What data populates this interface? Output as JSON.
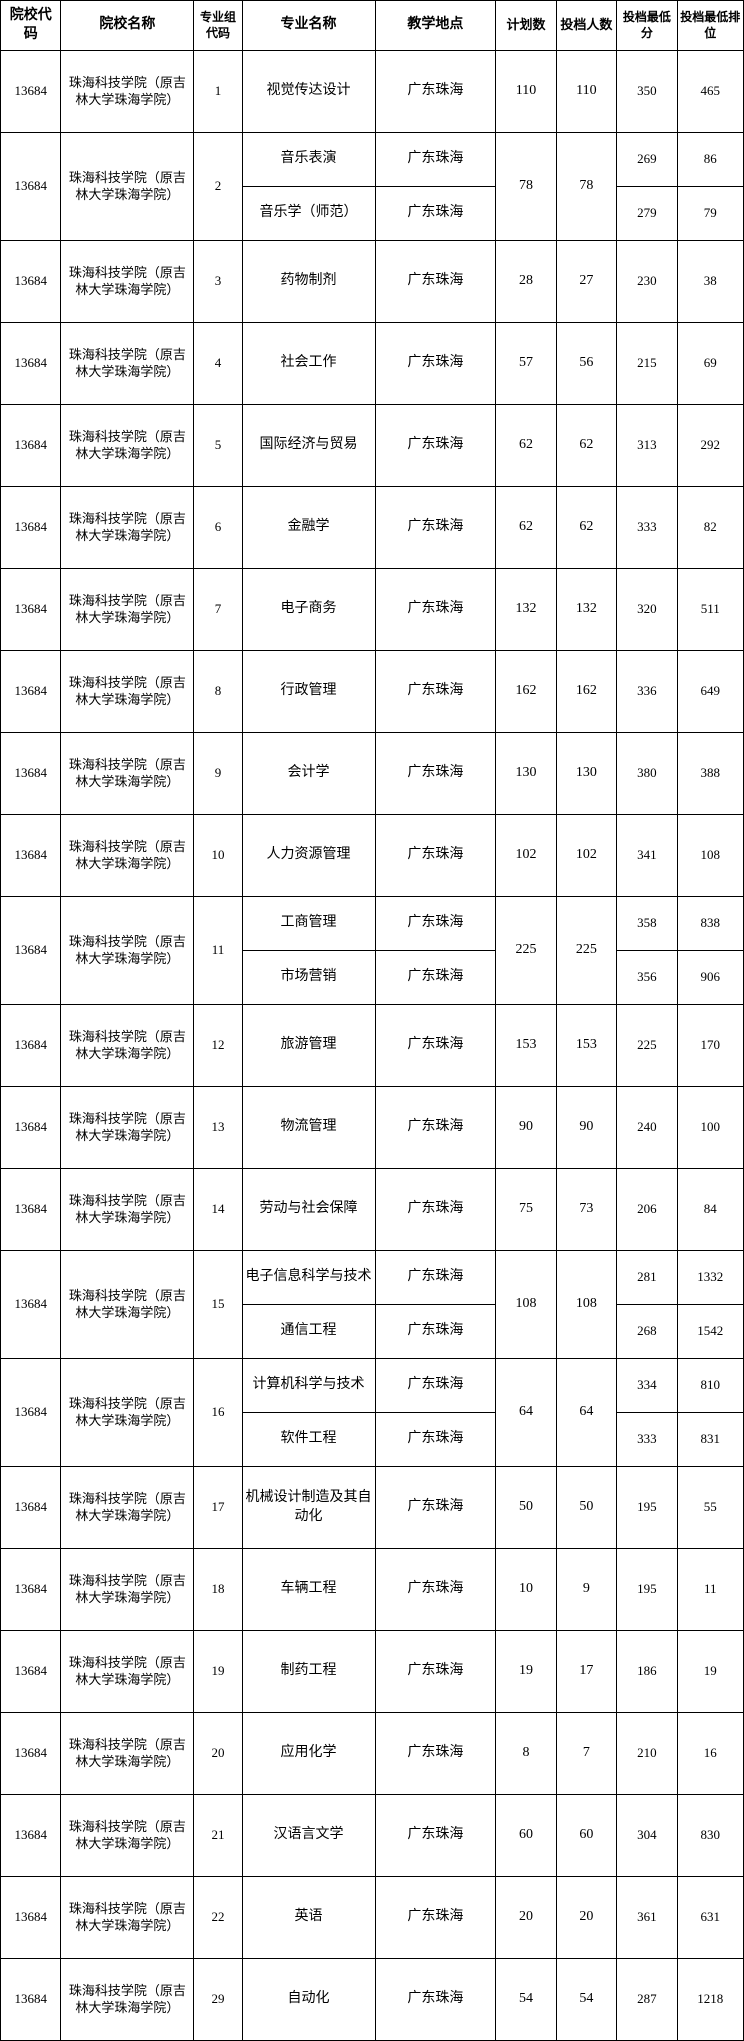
{
  "columns": [
    "院校代码",
    "院校名称",
    "专业组代码",
    "专业名称",
    "教学地点",
    "计划数",
    "投档人数",
    "投档最低分",
    "投档最低排位"
  ],
  "school_code": "13684",
  "school_name": "珠海科技学院（原吉林大学珠海学院）",
  "location": "广东珠海",
  "rows": [
    {
      "group": "1",
      "majors": [
        {
          "name": "视觉传达设计",
          "score": "350",
          "rank": "465"
        }
      ],
      "plan": "110",
      "admit": "110"
    },
    {
      "group": "2",
      "majors": [
        {
          "name": "音乐表演",
          "score": "269",
          "rank": "86"
        },
        {
          "name": "音乐学（师范）",
          "score": "279",
          "rank": "79"
        }
      ],
      "plan": "78",
      "admit": "78"
    },
    {
      "group": "3",
      "majors": [
        {
          "name": "药物制剂",
          "score": "230",
          "rank": "38"
        }
      ],
      "plan": "28",
      "admit": "27"
    },
    {
      "group": "4",
      "majors": [
        {
          "name": "社会工作",
          "score": "215",
          "rank": "69"
        }
      ],
      "plan": "57",
      "admit": "56"
    },
    {
      "group": "5",
      "majors": [
        {
          "name": "国际经济与贸易",
          "score": "313",
          "rank": "292"
        }
      ],
      "plan": "62",
      "admit": "62"
    },
    {
      "group": "6",
      "majors": [
        {
          "name": "金融学",
          "score": "333",
          "rank": "82"
        }
      ],
      "plan": "62",
      "admit": "62"
    },
    {
      "group": "7",
      "majors": [
        {
          "name": "电子商务",
          "score": "320",
          "rank": "511"
        }
      ],
      "plan": "132",
      "admit": "132"
    },
    {
      "group": "8",
      "majors": [
        {
          "name": "行政管理",
          "score": "336",
          "rank": "649"
        }
      ],
      "plan": "162",
      "admit": "162"
    },
    {
      "group": "9",
      "majors": [
        {
          "name": "会计学",
          "score": "380",
          "rank": "388"
        }
      ],
      "plan": "130",
      "admit": "130"
    },
    {
      "group": "10",
      "majors": [
        {
          "name": "人力资源管理",
          "score": "341",
          "rank": "108"
        }
      ],
      "plan": "102",
      "admit": "102"
    },
    {
      "group": "11",
      "majors": [
        {
          "name": "工商管理",
          "score": "358",
          "rank": "838"
        },
        {
          "name": "市场营销",
          "score": "356",
          "rank": "906"
        }
      ],
      "plan": "225",
      "admit": "225"
    },
    {
      "group": "12",
      "majors": [
        {
          "name": "旅游管理",
          "score": "225",
          "rank": "170"
        }
      ],
      "plan": "153",
      "admit": "153"
    },
    {
      "group": "13",
      "majors": [
        {
          "name": "物流管理",
          "score": "240",
          "rank": "100"
        }
      ],
      "plan": "90",
      "admit": "90"
    },
    {
      "group": "14",
      "majors": [
        {
          "name": "劳动与社会保障",
          "score": "206",
          "rank": "84"
        }
      ],
      "plan": "75",
      "admit": "73"
    },
    {
      "group": "15",
      "majors": [
        {
          "name": "电子信息科学与技术",
          "score": "281",
          "rank": "1332"
        },
        {
          "name": "通信工程",
          "score": "268",
          "rank": "1542"
        }
      ],
      "plan": "108",
      "admit": "108"
    },
    {
      "group": "16",
      "majors": [
        {
          "name": "计算机科学与技术",
          "score": "334",
          "rank": "810"
        },
        {
          "name": "软件工程",
          "score": "333",
          "rank": "831"
        }
      ],
      "plan": "64",
      "admit": "64"
    },
    {
      "group": "17",
      "majors": [
        {
          "name": "机械设计制造及其自动化",
          "score": "195",
          "rank": "55"
        }
      ],
      "plan": "50",
      "admit": "50"
    },
    {
      "group": "18",
      "majors": [
        {
          "name": "车辆工程",
          "score": "195",
          "rank": "11"
        }
      ],
      "plan": "10",
      "admit": "9"
    },
    {
      "group": "19",
      "majors": [
        {
          "name": "制药工程",
          "score": "186",
          "rank": "19"
        }
      ],
      "plan": "19",
      "admit": "17"
    },
    {
      "group": "20",
      "majors": [
        {
          "name": "应用化学",
          "score": "210",
          "rank": "16"
        }
      ],
      "plan": "8",
      "admit": "7"
    },
    {
      "group": "21",
      "majors": [
        {
          "name": "汉语言文学",
          "score": "304",
          "rank": "830"
        }
      ],
      "plan": "60",
      "admit": "60"
    },
    {
      "group": "22",
      "majors": [
        {
          "name": "英语",
          "score": "361",
          "rank": "631"
        }
      ],
      "plan": "20",
      "admit": "20"
    },
    {
      "group": "29",
      "majors": [
        {
          "name": "自动化",
          "score": "287",
          "rank": "1218"
        }
      ],
      "plan": "54",
      "admit": "54"
    }
  ],
  "style": {
    "border_color": "#000000",
    "background_color": "#ffffff",
    "text_color": "#000000",
    "header_fontsize": 14,
    "cell_fontsize": 14,
    "small_fontsize": 13,
    "xs_fontsize": 12
  }
}
